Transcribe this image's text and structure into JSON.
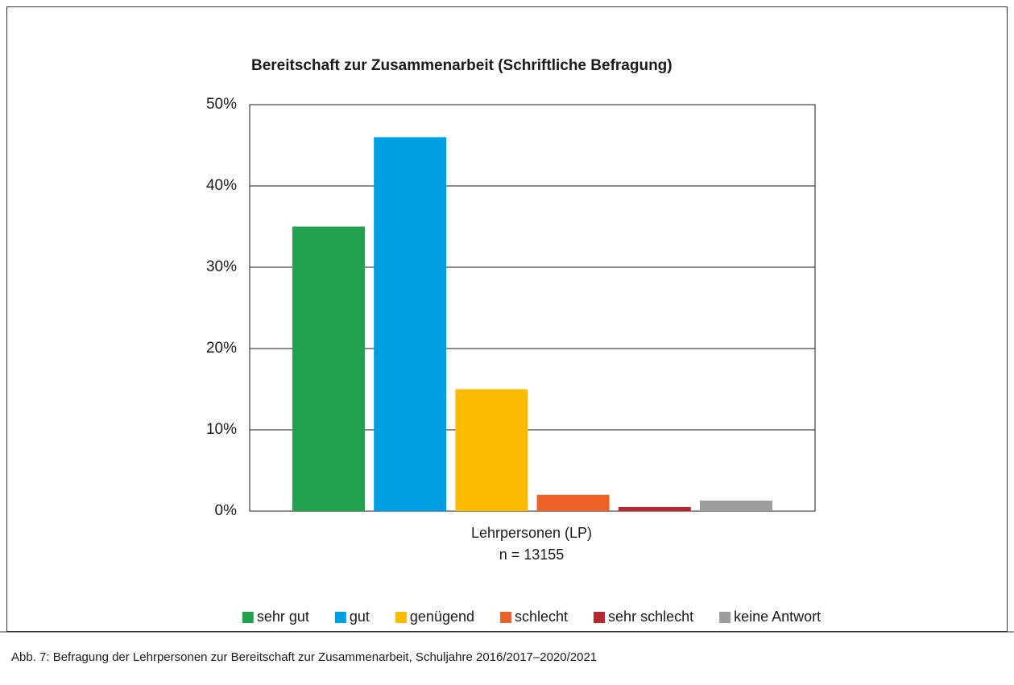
{
  "chart_data": {
    "type": "bar",
    "title": "Bereitschaft zur Zusammenarbeit (Schriftliche Befragung)",
    "categories": [
      "Lehrpersonen (LP)"
    ],
    "annotation": "n = 13155",
    "series": [
      {
        "name": "sehr gut",
        "color": "#22a250",
        "values": [
          35
        ]
      },
      {
        "name": "gut",
        "color": "#009fe3",
        "values": [
          46
        ]
      },
      {
        "name": "genügend",
        "color": "#fbbb00",
        "values": [
          15
        ]
      },
      {
        "name": "schlecht",
        "color": "#eb6126",
        "values": [
          2
        ]
      },
      {
        "name": "sehr schlecht",
        "color": "#b2292e",
        "values": [
          0.5
        ]
      },
      {
        "name": "keine Antwort",
        "color": "#9d9d9c",
        "values": [
          1.3
        ]
      }
    ],
    "ylim": [
      0,
      50
    ],
    "yticks": [
      {
        "value": 0,
        "label": "0%"
      },
      {
        "value": 10,
        "label": "10%"
      },
      {
        "value": 20,
        "label": "20%"
      },
      {
        "value": 30,
        "label": "30%"
      },
      {
        "value": 40,
        "label": "40%"
      },
      {
        "value": 50,
        "label": "50%"
      }
    ],
    "grid": true,
    "legend": "bottom",
    "caption": "Abb. 7: Befragung der Lehrpersonen zur Bereitschaft zur Zusammenarbeit, Schuljahre 2016/2017–2020/2021"
  }
}
